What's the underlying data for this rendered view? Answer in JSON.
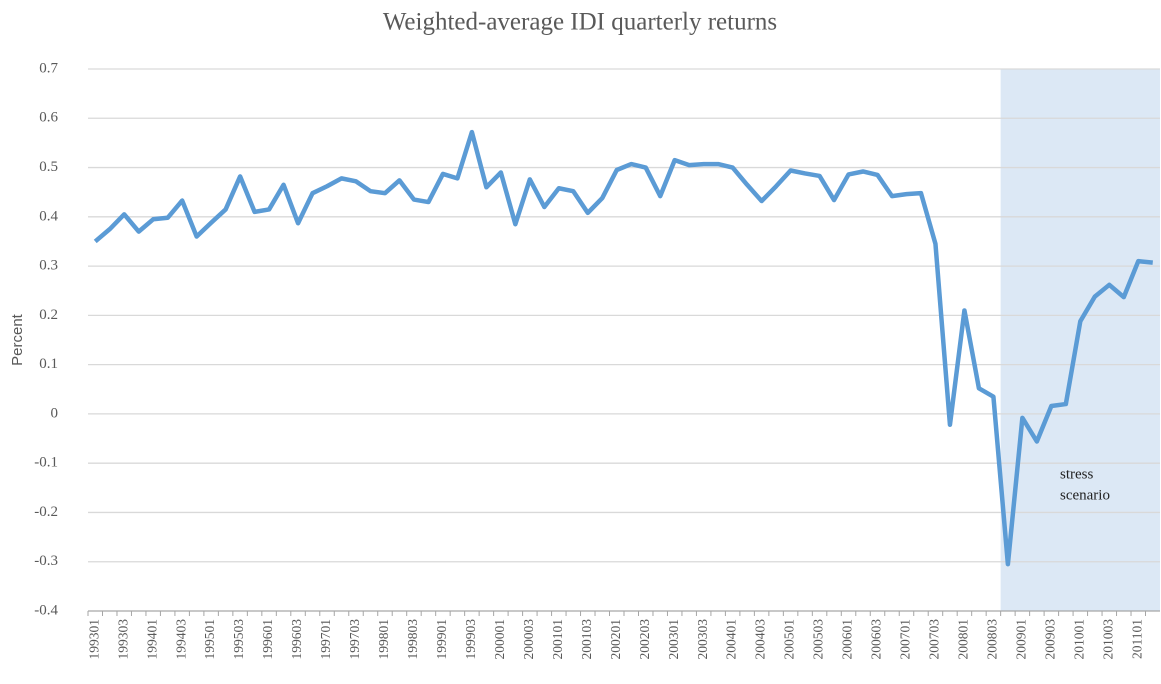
{
  "chart_data": {
    "type": "line",
    "title": "Weighted-average  IDI quarterly  returns",
    "y_label": "Percent",
    "categories": [
      "199301",
      null,
      "199303",
      null,
      "199401",
      null,
      "199403",
      null,
      "199501",
      null,
      "199503",
      null,
      "199601",
      null,
      "199603",
      null,
      "199701",
      null,
      "199703",
      null,
      "199801",
      null,
      "199803",
      null,
      "199901",
      null,
      "199903",
      null,
      "200001",
      null,
      "200003",
      null,
      "200101",
      null,
      "200103",
      null,
      "200201",
      null,
      "200203",
      null,
      "200301",
      null,
      "200303",
      null,
      "200401",
      null,
      "200403",
      null,
      "200501",
      null,
      "200503",
      null,
      "200601",
      null,
      "200603",
      null,
      "200701",
      null,
      "200703",
      null,
      "200801",
      null,
      "200803",
      null,
      "200901",
      null,
      "200903",
      null,
      "201001",
      null,
      "201003",
      null,
      "201101",
      null
    ],
    "series": [
      {
        "name": "Weighted-average IDI quarterly returns",
        "color": "#5b9bd5",
        "values": [
          0.35,
          0.375,
          0.405,
          0.37,
          0.395,
          0.398,
          0.433,
          0.36,
          0.388,
          0.415,
          0.482,
          0.41,
          0.415,
          0.465,
          0.387,
          0.448,
          0.462,
          0.478,
          0.472,
          0.452,
          0.448,
          0.474,
          0.435,
          0.43,
          0.487,
          0.478,
          0.572,
          0.46,
          0.49,
          0.385,
          0.476,
          0.42,
          0.458,
          0.452,
          0.408,
          0.438,
          0.495,
          0.507,
          0.5,
          0.442,
          0.515,
          0.505,
          0.507,
          0.507,
          0.5,
          0.465,
          0.432,
          0.462,
          0.494,
          0.488,
          0.483,
          0.434,
          0.486,
          0.492,
          0.485,
          0.442,
          0.446,
          0.448,
          0.345,
          -0.022,
          0.21,
          0.052,
          0.035,
          -0.305,
          -0.008,
          -0.056,
          0.016,
          0.02,
          0.188,
          0.238,
          0.262,
          0.237,
          0.31,
          0.307
        ]
      }
    ],
    "ylim": [
      -0.4,
      0.7
    ],
    "yticks": [
      -0.4,
      -0.3,
      -0.2,
      -0.1,
      0,
      0.1,
      0.2,
      0.3,
      0.4,
      0.5,
      0.6,
      0.7
    ],
    "grid": true,
    "highlight": {
      "label": [
        "stress",
        "scenario"
      ],
      "start_index": 63,
      "color": "#dce8f5"
    }
  }
}
